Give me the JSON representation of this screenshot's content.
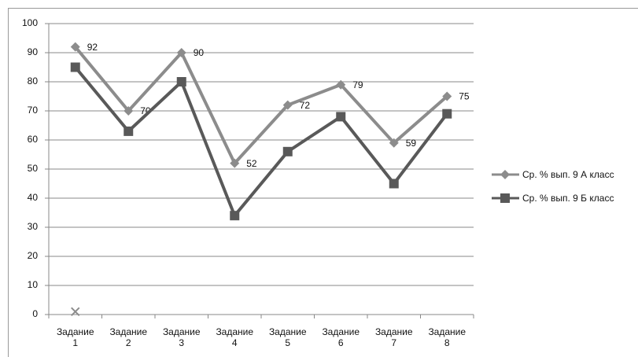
{
  "chart_data": {
    "type": "line",
    "categories": [
      "Задание 1",
      "Задание 2",
      "Задание 3",
      "Задание 4",
      "Задание 5",
      "Задание 6",
      "Задание 7",
      "Задание 8"
    ],
    "series": [
      {
        "name": "Ср. % вып. 9 А класс",
        "color": "#8c8c8c",
        "marker": "diamond",
        "values": [
          92,
          70,
          90,
          52,
          72,
          79,
          59,
          75
        ],
        "value_labels": [
          "92",
          "70",
          "90",
          "52",
          "72",
          "79",
          "59",
          "75"
        ]
      },
      {
        "name": "Ср. % вып. 9 Б класс",
        "color": "#595959",
        "marker": "square",
        "values": [
          85,
          63,
          80,
          34,
          56,
          68,
          45,
          69
        ]
      },
      {
        "color": "#8c8c8c",
        "marker": "x",
        "values": [
          1,
          null,
          null,
          null,
          null,
          null,
          null,
          null
        ]
      }
    ],
    "ylim": [
      0,
      100
    ],
    "yticks": [
      0,
      10,
      20,
      30,
      40,
      50,
      60,
      70,
      80,
      90,
      100
    ],
    "grid": true,
    "legend": "right"
  }
}
